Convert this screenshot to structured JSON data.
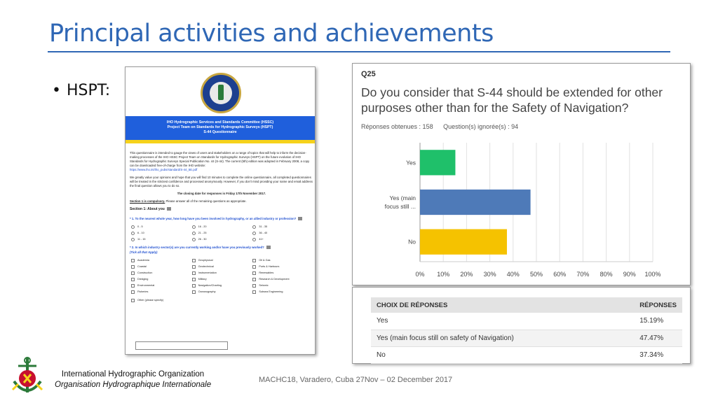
{
  "slide": {
    "title": "Principal activities and achievements",
    "bullet": "HSPT:"
  },
  "document": {
    "logo_text": "IHO",
    "header_lines": [
      "IHO Hydrographic Services and Standards Committee (HSSC)",
      "Project Team on Standards for Hydrographic Surveys (HSPT)",
      "S-44 Questionnaire"
    ],
    "para1": "This questionnaire is intended to gauge the views of users and stakeholders on a range of topics that will help to inform the decision-making processes of the IHO HSSC Project Team on Standards for Hydrographic Surveys (HSPT) on the future evolution of IHO Standards for Hydrographic Surveys Special Publication No. 44 (S-44). The current (5th) edition was adopted in February 2008, a copy can be downloaded free-of-charge from the IHO website:",
    "link": "https://www.iho.int/iho_pubs/standard/S-44_5E.pdf",
    "para2": "We greatly value your opinions and hope that you will find 10 minutes to complete the online questionnaire, all completed questionnaires will be treated in the strictest confidence and processed anonymously. However, if you don't mind providing your name and email address the final question allows you to do so.",
    "closing": "The closing date for responses is Friday 17th November 2017.",
    "section_note_bold": "Section 1 is compulsory.",
    "section_note": " Please answer all of the remaining questions as appropriate.",
    "section_title": "Section 1: About you",
    "q1": "* 1. To the nearest whole year, how long have you been involved in hydrography, or an allied industry or profession?",
    "q1_options": [
      "0 - 5",
      "16 - 20",
      "31 - 35",
      "6 - 10",
      "21 - 25",
      "36 - 40",
      "11 - 15",
      "26 - 30",
      "41+"
    ],
    "q2": "* 2. In which industry sector(s) are you currently working and/or have you previously worked?",
    "q2_hint": "(Tick all that Apply)",
    "q2_options": [
      "Academia",
      "Geophysical",
      "Oil & Gas",
      "Coastal",
      "Geotechnical",
      "Ports & Harbours",
      "Construction",
      "Instrumentation",
      "Renewables",
      "Dredging",
      "Military",
      "Research & Development",
      "Environmental",
      "Navigation/Charting",
      "Seismic",
      "Fisheries",
      "Oceanography",
      "Subsea Engineering"
    ],
    "q2_other": "Other (please specify)"
  },
  "question": {
    "number": "Q25",
    "text": "Do you consider that S-44 should be extended for other purposes other than for the Safety of Navigation?",
    "answered": "Réponses obtenues : 158",
    "skipped": "Question(s) ignorée(s) : 94"
  },
  "chart_data": {
    "type": "bar",
    "orientation": "horizontal",
    "categories": [
      "Yes",
      "Yes (main focus still ...",
      "No"
    ],
    "values": [
      15.19,
      47.47,
      37.34
    ],
    "colors": [
      "#1fc06a",
      "#4e7ab8",
      "#f5c200"
    ],
    "xlim": [
      0,
      100
    ],
    "xticks": [
      "0%",
      "10%",
      "20%",
      "30%",
      "40%",
      "50%",
      "60%",
      "70%",
      "80%",
      "90%",
      "100%"
    ],
    "grid": true
  },
  "table": {
    "col_choice": "CHOIX DE RÉPONSES",
    "col_responses": "RÉPONSES",
    "rows": [
      {
        "choice": "Yes",
        "pct": "15.19%"
      },
      {
        "choice": "Yes (main focus still on safety of Navigation)",
        "pct": "47.47%"
      },
      {
        "choice": "No",
        "pct": "37.34%"
      }
    ]
  },
  "footer": {
    "org_en": "International Hydrographic Organization",
    "org_fr": "Organisation Hydrographique Internationale",
    "event": "MACHC18, Varadero, Cuba 27Nov – 02 December 2017"
  }
}
